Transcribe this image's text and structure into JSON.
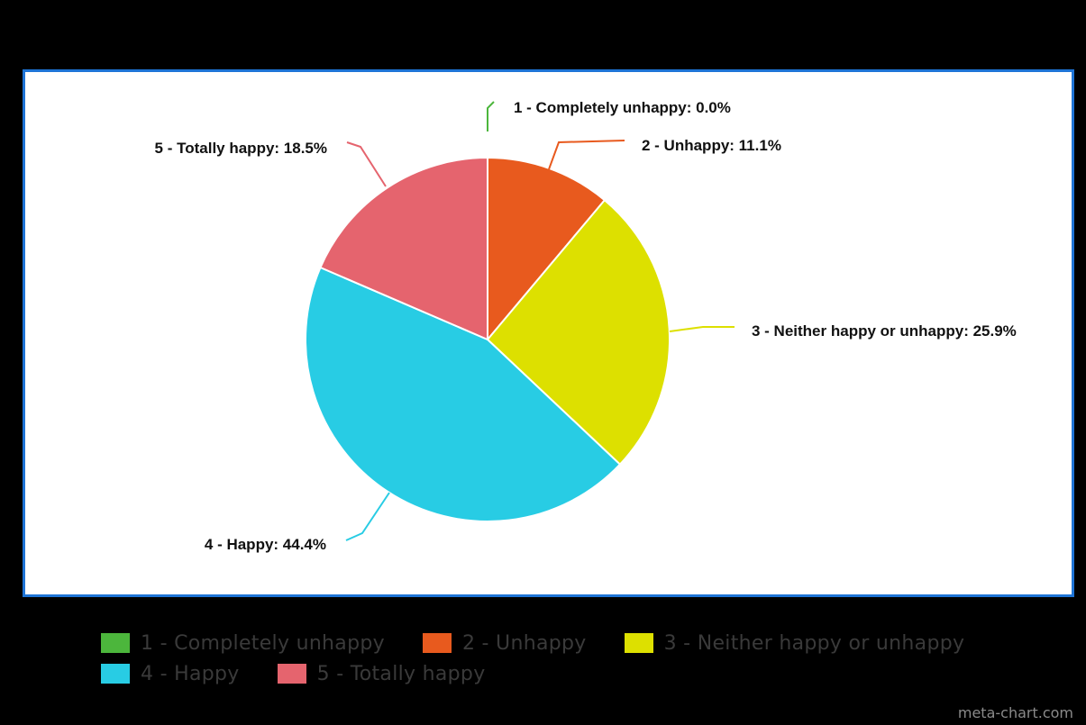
{
  "chart_data": {
    "type": "pie",
    "categories": [
      "1 - Completely unhappy",
      "2 - Unhappy",
      "3 - Neither happy or unhappy",
      "4 - Happy",
      "5 - Totally happy"
    ],
    "values": [
      0.0,
      11.1,
      25.9,
      44.4,
      18.5
    ],
    "colors": [
      "#4cb63c",
      "#e85a1e",
      "#dde000",
      "#28cce4",
      "#e5646e"
    ],
    "slice_labels": [
      "1 - Completely unhappy: 0.0%",
      "2 - Unhappy: 11.1%",
      "3 - Neither happy or unhappy: 25.9%",
      "4 - Happy: 44.4%",
      "5 - Totally happy: 18.5%"
    ],
    "legend": {
      "position": "bottom",
      "items": [
        "1 - Completely unhappy",
        "2 - Unhappy",
        "3 - Neither happy or unhappy",
        "4 - Happy",
        "5 - Totally happy"
      ]
    }
  },
  "watermark": "meta-chart.com"
}
